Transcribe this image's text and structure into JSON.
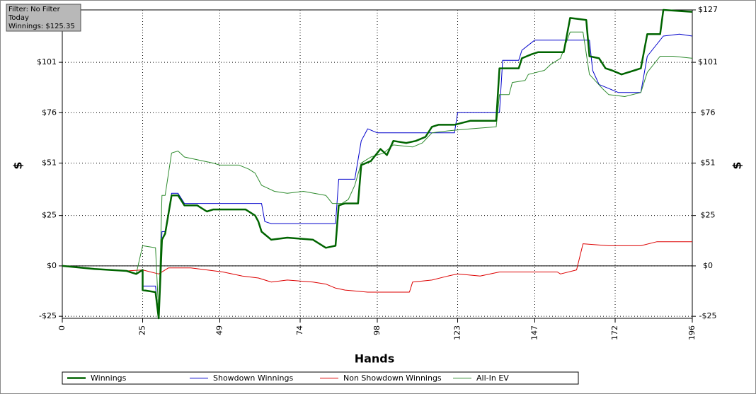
{
  "chart_data": {
    "type": "line",
    "xlabel": "Hands",
    "ylabel": "$",
    "annotations": [
      "Filter: No Filter",
      "Today",
      "Winnings: $125.35"
    ],
    "xlim": [
      0,
      196
    ],
    "xticks": [
      0,
      25,
      49,
      74,
      98,
      123,
      147,
      172,
      196
    ],
    "ylim": [
      -26,
      127
    ],
    "yticks": [
      {
        "value": -25,
        "label": "-$25"
      },
      {
        "value": 0,
        "label": "$0"
      },
      {
        "value": 25,
        "label": "$25"
      },
      {
        "value": 51,
        "label": "$51"
      },
      {
        "value": 76,
        "label": "$76"
      },
      {
        "value": 101,
        "label": "$101"
      },
      {
        "value": 127,
        "label": "$127"
      }
    ],
    "grid": true,
    "series": [
      {
        "name": "Winnings",
        "color": "#006400",
        "x": [
          0,
          10,
          20,
          23,
          25,
          25,
          29,
          30,
          31,
          32,
          34,
          36,
          38,
          42,
          45,
          47,
          57,
          60,
          61,
          62,
          65,
          70,
          78,
          82,
          85,
          86,
          88,
          92,
          93,
          96,
          99,
          101,
          103,
          107,
          110,
          113,
          115,
          117,
          122,
          127,
          135,
          136,
          142,
          143,
          146,
          148,
          156,
          158,
          163,
          164,
          167,
          169,
          171,
          174,
          178,
          180,
          182,
          186,
          187,
          196
        ],
        "values": [
          0,
          -1.5,
          -2.5,
          -4,
          -2,
          -12,
          -13,
          -26,
          13,
          16,
          35,
          35,
          30,
          30,
          27,
          28,
          28,
          25,
          22,
          17,
          13,
          14,
          13,
          9,
          10,
          30,
          31,
          31,
          50,
          52,
          58,
          55,
          62,
          61,
          62,
          64,
          69,
          70,
          70,
          72,
          72,
          98,
          98,
          103,
          105,
          106,
          106,
          123,
          122,
          104,
          103,
          98,
          97,
          95,
          97,
          98,
          115,
          115,
          127,
          126
        ]
      },
      {
        "name": "Showdown Winnings",
        "color": "#0000cc",
        "x": [
          0,
          10,
          20,
          23,
          25,
          25,
          29,
          30,
          31,
          32,
          34,
          36,
          38,
          62,
          63,
          65,
          85,
          86,
          91,
          93,
          95,
          98,
          122,
          123,
          136,
          137,
          142,
          143,
          147,
          164,
          165,
          167,
          170,
          173,
          180,
          182,
          187,
          192,
          196
        ],
        "values": [
          0,
          -1.5,
          -2.5,
          -4,
          -2,
          -10,
          -10,
          -26,
          17,
          17,
          36,
          36,
          31,
          31,
          22,
          21,
          21,
          43,
          43,
          62,
          68,
          66,
          66,
          76,
          76,
          102,
          102,
          107,
          112,
          112,
          97,
          90,
          88,
          86,
          86,
          104,
          114,
          115,
          114
        ]
      },
      {
        "name": "Non Showdown Winnings",
        "color": "#dd0000",
        "x": [
          0,
          10,
          20,
          25,
          30,
          33,
          40,
          45,
          50,
          56,
          61,
          65,
          70,
          78,
          82,
          85,
          88,
          95,
          108,
          109,
          115,
          120,
          123,
          130,
          136,
          142,
          154,
          155,
          160,
          162,
          170,
          180,
          185,
          196
        ],
        "values": [
          0,
          -1.5,
          -2.5,
          -2,
          -4,
          -1,
          -1,
          -2,
          -3,
          -5,
          -6,
          -8,
          -7,
          -8,
          -9,
          -11,
          -12,
          -13,
          -13,
          -8,
          -7,
          -5,
          -4,
          -5,
          -3,
          -3,
          -3,
          -4,
          -2,
          11,
          10,
          10,
          12,
          12
        ]
      },
      {
        "name": "All-In EV",
        "color": "#2e8b2e",
        "x": [
          0,
          10,
          20,
          23,
          25,
          29,
          30,
          31,
          32,
          34,
          36,
          38,
          47,
          49,
          55,
          58,
          60,
          62,
          66,
          70,
          75,
          82,
          84,
          87,
          89,
          91,
          93,
          94,
          96,
          100,
          103,
          109,
          112,
          115,
          120,
          127,
          135,
          136,
          139,
          140,
          144,
          145,
          150,
          152,
          155,
          158,
          162,
          164,
          168,
          170,
          175,
          180,
          182,
          186,
          190,
          196
        ],
        "values": [
          0,
          -1.5,
          -2.5,
          -4,
          10,
          9,
          -24,
          35,
          35,
          56,
          57,
          54,
          51,
          50,
          50,
          48,
          46,
          40,
          37,
          36,
          37,
          35,
          31,
          31,
          33,
          40,
          51,
          52,
          54,
          56,
          60,
          59,
          61,
          66,
          67,
          68,
          69,
          85,
          85,
          91,
          92,
          95,
          97,
          100,
          103,
          116,
          116,
          95,
          88,
          85,
          84,
          86,
          96,
          104,
          104,
          103
        ]
      }
    ]
  }
}
